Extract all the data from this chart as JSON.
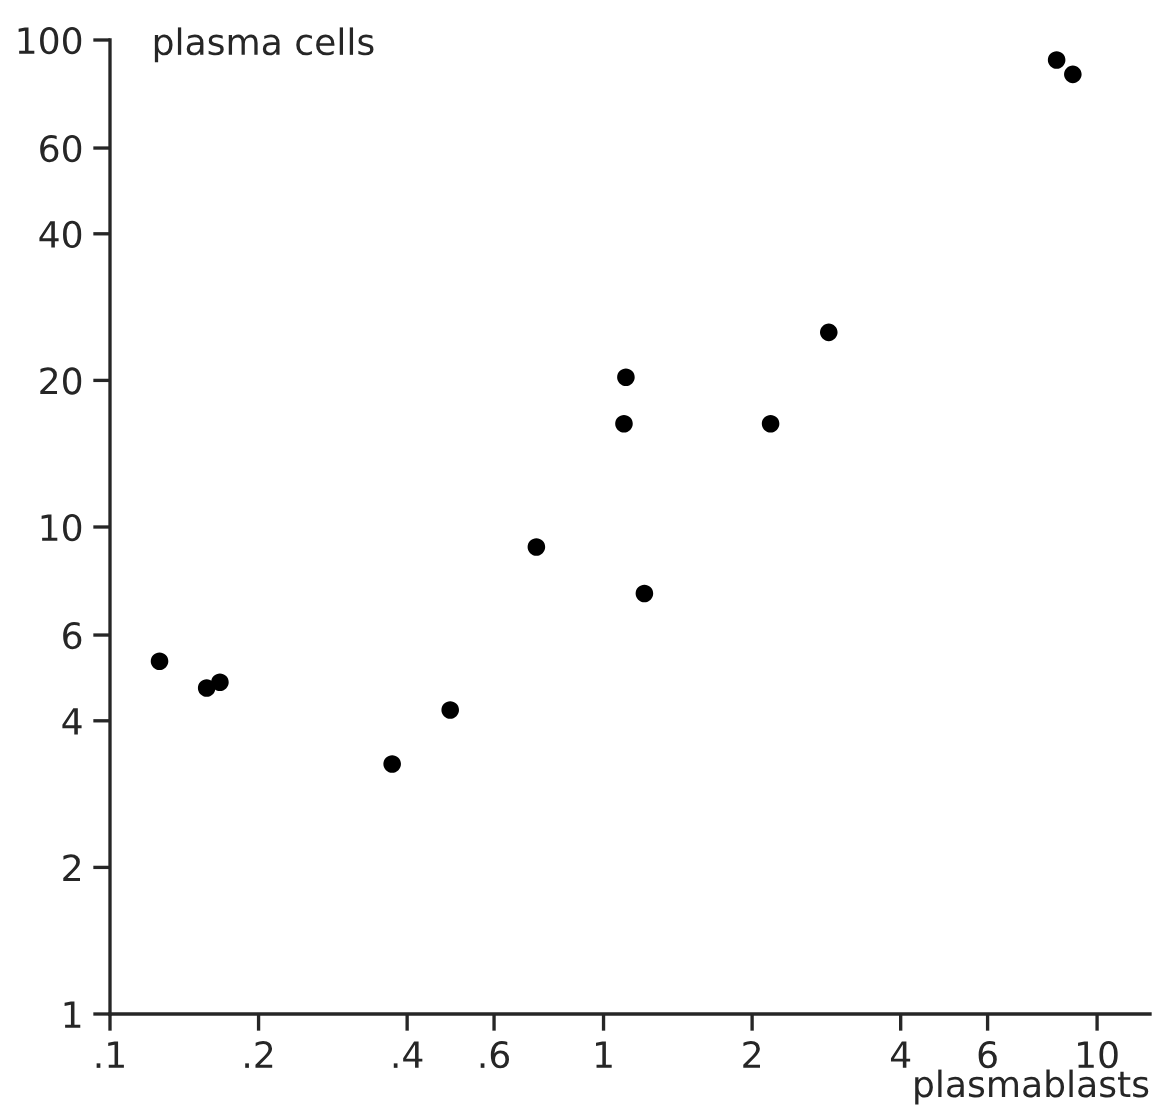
{
  "chart_data": {
    "type": "scatter",
    "xlabel": "plasmablasts",
    "ylabel": "plasma cells",
    "x": [
      0.126,
      0.157,
      0.167,
      0.373,
      0.489,
      0.731,
      1.11,
      1.1,
      1.21,
      2.18,
      2.86,
      8.28,
      8.93
    ],
    "values": [
      5.3,
      4.67,
      4.8,
      3.26,
      4.21,
      9.1,
      20.3,
      16.3,
      7.3,
      16.3,
      25.1,
      91,
      85
    ],
    "color": "#000000",
    "marker": "circle",
    "log": "xy",
    "grid": false,
    "xlim": [
      0.1,
      12.8
    ],
    "ylim": [
      1,
      100
    ],
    "xticks": [
      {
        "value": 0.1,
        "label": ".1"
      },
      {
        "value": 0.2,
        "label": ".2"
      },
      {
        "value": 0.4,
        "label": ".4"
      },
      {
        "value": 0.6,
        "label": ".6"
      },
      1,
      2,
      4,
      6,
      10
    ],
    "yticks": [
      1,
      2,
      4,
      6,
      10,
      20,
      40,
      60,
      100
    ]
  }
}
